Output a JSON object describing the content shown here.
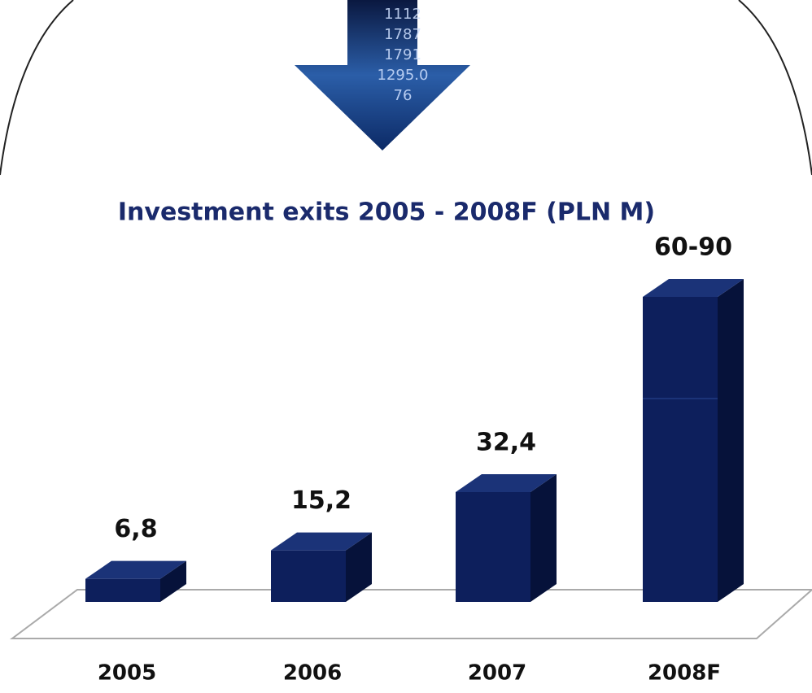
{
  "arrow_image": {
    "texts": [
      "1112",
      "1787",
      "1791",
      "1295.0",
      "76"
    ]
  },
  "chart_data": {
    "type": "bar3d",
    "title": "Investment exits 2005 - 2008F (PLN M)",
    "categories": [
      "2005",
      "2006",
      "2007",
      "2008F"
    ],
    "values": [
      6.8,
      15.2,
      32.4,
      null
    ],
    "range": [
      60,
      90
    ],
    "value_labels": [
      "6,8",
      "15,2",
      "32,4",
      "60-90"
    ],
    "color": "#0d1f5c"
  }
}
